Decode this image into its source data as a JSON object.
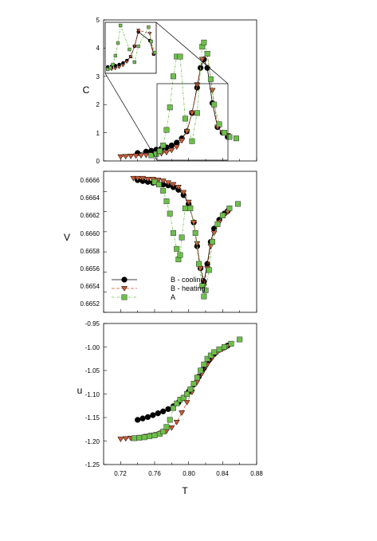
{
  "chart_data": [
    {
      "type": "scatter",
      "panel": "C",
      "ylabel": "C",
      "xlim": [
        0.7,
        0.88
      ],
      "ylim": [
        0,
        5
      ],
      "yticks": [
        "0",
        "1",
        "2",
        "3",
        "4",
        "5"
      ],
      "connected_markers": true,
      "series": [
        {
          "key": "B_cool",
          "color": "#000000",
          "marker": "circle",
          "x": [
            0.74,
            0.75,
            0.756,
            0.762,
            0.768,
            0.774,
            0.78,
            0.786,
            0.792,
            0.798,
            0.804,
            0.81,
            0.814,
            0.818,
            0.822,
            0.828,
            0.834,
            0.84,
            0.846
          ],
          "y": [
            0.28,
            0.33,
            0.36,
            0.4,
            0.44,
            0.48,
            0.55,
            0.65,
            0.8,
            1.05,
            1.7,
            2.6,
            3.3,
            3.6,
            3.3,
            2.05,
            1.2,
            1.0,
            0.85
          ]
        },
        {
          "key": "B_heat",
          "color": "#c65a35",
          "marker": "triangle-down",
          "x": [
            0.72,
            0.726,
            0.732,
            0.738,
            0.744,
            0.75,
            0.756,
            0.762,
            0.768,
            0.774,
            0.78,
            0.786,
            0.792,
            0.798,
            0.804,
            0.81,
            0.816,
            0.822,
            0.828,
            0.834,
            0.84,
            0.846
          ],
          "y": [
            0.15,
            0.16,
            0.17,
            0.18,
            0.19,
            0.2,
            0.22,
            0.24,
            0.26,
            0.3,
            0.38,
            0.5,
            0.72,
            1.05,
            1.7,
            2.7,
            3.6,
            3.8,
            2.5,
            1.2,
            1.0,
            0.9
          ]
        },
        {
          "key": "A",
          "color": "#6cc04a",
          "marker": "square",
          "x": [
            0.756,
            0.762,
            0.766,
            0.77,
            0.774,
            0.778,
            0.782,
            0.786,
            0.79,
            0.796,
            0.804,
            0.81,
            0.816,
            0.818,
            0.822,
            0.826,
            0.83,
            0.836,
            0.842,
            0.848,
            0.856
          ],
          "y": [
            0.2,
            0.25,
            0.35,
            0.55,
            1.1,
            1.9,
            3.0,
            3.7,
            3.7,
            1.5,
            0.7,
            1.7,
            4.05,
            4.2,
            3.8,
            2.9,
            2.0,
            1.3,
            1.0,
            0.85,
            0.8
          ]
        }
      ],
      "inset": {
        "xlim": [
          0.758,
          0.838
        ],
        "ylim": [
          0,
          3.2
        ]
      }
    },
    {
      "type": "scatter",
      "panel": "V",
      "ylabel": "V",
      "xlim": [
        0.7,
        0.88
      ],
      "ylim": [
        0.6651,
        0.6667
      ],
      "yticks": [
        "0.6652",
        "0.6654",
        "0.6656",
        "0.6658",
        "0.6660",
        "0.6662",
        "0.6664",
        "0.6666"
      ],
      "connected_markers": true,
      "series": [
        {
          "key": "B_cool",
          "color": "#000000",
          "marker": "circle",
          "x": [
            0.74,
            0.746,
            0.752,
            0.758,
            0.764,
            0.77,
            0.776,
            0.782,
            0.788,
            0.794,
            0.8,
            0.806,
            0.81,
            0.814,
            0.818,
            0.822,
            0.826,
            0.83,
            0.836,
            0.842,
            0.846
          ],
          "y": [
            0.6666,
            0.66659,
            0.66658,
            0.66657,
            0.66656,
            0.66655,
            0.66654,
            0.66652,
            0.66649,
            0.66643,
            0.66633,
            0.66612,
            0.66585,
            0.6656,
            0.66545,
            0.66565,
            0.6659,
            0.66605,
            0.66615,
            0.66622,
            0.66625
          ]
        },
        {
          "key": "B_heat",
          "color": "#c65a35",
          "marker": "triangle-down",
          "x": [
            0.735,
            0.74,
            0.746,
            0.752,
            0.758,
            0.764,
            0.77,
            0.776,
            0.782,
            0.788,
            0.794,
            0.8,
            0.806,
            0.81,
            0.814,
            0.818,
            0.822,
            0.826,
            0.83,
            0.836,
            0.842,
            0.846
          ],
          "y": [
            0.66662,
            0.66662,
            0.66662,
            0.66661,
            0.66661,
            0.6666,
            0.66659,
            0.66657,
            0.66655,
            0.66652,
            0.66646,
            0.66635,
            0.66612,
            0.66588,
            0.6656,
            0.6654,
            0.6656,
            0.66585,
            0.666,
            0.66612,
            0.6662,
            0.66624
          ]
        },
        {
          "key": "A",
          "color": "#6cc04a",
          "marker": "square",
          "x": [
            0.76,
            0.765,
            0.77,
            0.774,
            0.778,
            0.782,
            0.786,
            0.788,
            0.79,
            0.792,
            0.796,
            0.802,
            0.808,
            0.812,
            0.816,
            0.818,
            0.82,
            0.824,
            0.828,
            0.834,
            0.84,
            0.848,
            0.858
          ],
          "y": [
            0.66658,
            0.66655,
            0.66648,
            0.66636,
            0.66622,
            0.666,
            0.66582,
            0.6657,
            0.66575,
            0.66595,
            0.66628,
            0.66628,
            0.666,
            0.66565,
            0.6654,
            0.66528,
            0.66535,
            0.66558,
            0.6659,
            0.6661,
            0.6662,
            0.66628,
            0.66633
          ]
        }
      ]
    },
    {
      "type": "scatter",
      "panel": "u",
      "xlabel": "T",
      "ylabel": "u",
      "xlim": [
        0.7,
        0.88
      ],
      "ylim": [
        -1.25,
        -0.95
      ],
      "xticks": [
        "0.72",
        "0.76",
        "0.80",
        "0.84",
        "0.88"
      ],
      "yticks": [
        "-1.25",
        "-1.20",
        "-1.15",
        "-1.10",
        "-1.05",
        "-1.00",
        "-0.95"
      ],
      "connected_markers": true,
      "series": [
        {
          "key": "B_cool",
          "color": "#000000",
          "marker": "circle",
          "x": [
            0.74,
            0.746,
            0.752,
            0.758,
            0.764,
            0.77,
            0.776,
            0.782,
            0.788,
            0.794,
            0.8,
            0.806,
            0.812,
            0.818,
            0.824,
            0.83,
            0.836,
            0.842,
            0.846
          ],
          "y": [
            -1.155,
            -1.152,
            -1.149,
            -1.145,
            -1.141,
            -1.137,
            -1.132,
            -1.126,
            -1.118,
            -1.108,
            -1.095,
            -1.08,
            -1.063,
            -1.045,
            -1.028,
            -1.015,
            -1.006,
            -1.001,
            -0.997
          ]
        },
        {
          "key": "B_heat",
          "color": "#c65a35",
          "marker": "triangle-down",
          "x": [
            0.72,
            0.726,
            0.732,
            0.738,
            0.744,
            0.75,
            0.756,
            0.762,
            0.768,
            0.774,
            0.78,
            0.786,
            0.792,
            0.798,
            0.804,
            0.81,
            0.816,
            0.822,
            0.828,
            0.834,
            0.84,
            0.846
          ],
          "y": [
            -1.196,
            -1.195,
            -1.194,
            -1.193,
            -1.192,
            -1.19,
            -1.188,
            -1.186,
            -1.183,
            -1.179,
            -1.172,
            -1.16,
            -1.14,
            -1.118,
            -1.096,
            -1.075,
            -1.056,
            -1.038,
            -1.023,
            -1.011,
            -1.004,
            -0.998
          ]
        },
        {
          "key": "A",
          "color": "#6cc04a",
          "marker": "square",
          "x": [
            0.736,
            0.742,
            0.748,
            0.754,
            0.76,
            0.766,
            0.77,
            0.774,
            0.778,
            0.782,
            0.786,
            0.79,
            0.794,
            0.798,
            0.802,
            0.806,
            0.81,
            0.814,
            0.818,
            0.822,
            0.826,
            0.83,
            0.836,
            0.842,
            0.85,
            0.86
          ],
          "y": [
            -1.194,
            -1.193,
            -1.192,
            -1.19,
            -1.188,
            -1.185,
            -1.18,
            -1.17,
            -1.155,
            -1.13,
            -1.12,
            -1.112,
            -1.108,
            -1.1,
            -1.09,
            -1.078,
            -1.065,
            -1.05,
            -1.037,
            -1.025,
            -1.018,
            -1.011,
            -1.005,
            -1.0,
            -0.993,
            -0.984
          ]
        }
      ]
    }
  ],
  "legend": {
    "placement": "lower-left of middle panel",
    "entries": [
      {
        "key": "B_cool",
        "label": "B - cooling"
      },
      {
        "key": "B_heat",
        "label": "B - heating"
      },
      {
        "key": "A",
        "label": "A"
      }
    ]
  }
}
